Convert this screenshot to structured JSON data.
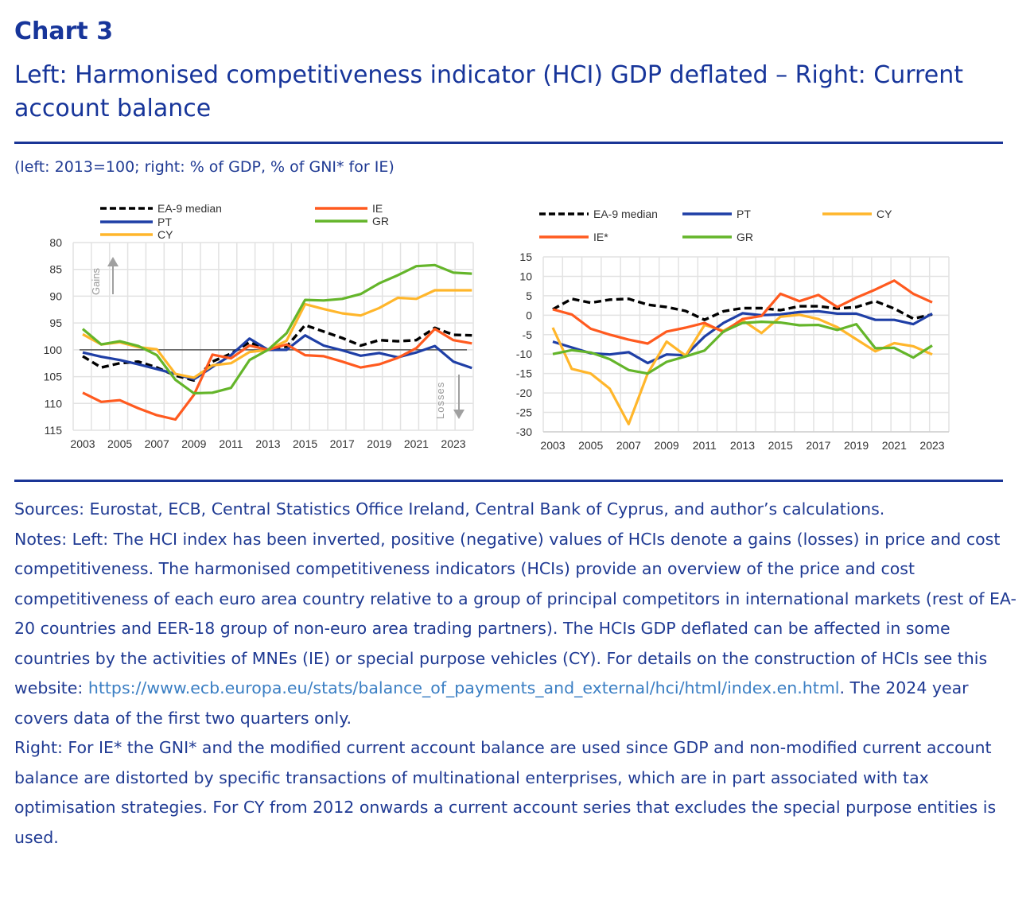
{
  "header": {
    "chart_label": "Chart 3",
    "title": "Left: Harmonised competitiveness indicator (HCI) GDP deflated – Right: Current account balance",
    "units": "(left: 2013=100; right: % of GDP, % of GNI* for IE)"
  },
  "colors": {
    "ea9": "#000000",
    "pt": "#1f3fa6",
    "cy": "#ffb62b",
    "ie": "#ff5a1f",
    "gr": "#64b52a",
    "brand": "#17359a",
    "link": "#3b7fc4"
  },
  "chart_data": [
    {
      "type": "line",
      "title": "Harmonised competitiveness indicator (HCI) GDP deflated",
      "ylabel": "2013=100",
      "yaxis_inverted": true,
      "ylim": [
        80,
        115
      ],
      "yticks": [
        80,
        85,
        90,
        95,
        100,
        105,
        110,
        115
      ],
      "xticks": [
        2003,
        2005,
        2007,
        2009,
        2011,
        2013,
        2015,
        2017,
        2019,
        2021,
        2023
      ],
      "x": [
        2003,
        2004,
        2005,
        2006,
        2007,
        2008,
        2009,
        2010,
        2011,
        2012,
        2013,
        2014,
        2015,
        2016,
        2017,
        2018,
        2019,
        2020,
        2021,
        2022,
        2023,
        2024
      ],
      "reference_line": 100,
      "annotations": [
        {
          "text": "Gains",
          "direction": "up"
        },
        {
          "text": "Losses",
          "direction": "down"
        }
      ],
      "grid": true,
      "legend_position": "top",
      "series": [
        {
          "name": "EA-9 median",
          "key": "ea9",
          "dashed": true,
          "values": [
            101.2,
            103.3,
            102.5,
            102.2,
            103.3,
            104.8,
            105.7,
            102.2,
            100.7,
            98.6,
            100.0,
            99.4,
            95.4,
            96.6,
            97.8,
            99.2,
            98.2,
            98.4,
            98.2,
            95.9,
            97.2,
            97.3
          ]
        },
        {
          "name": "PT",
          "key": "pt",
          "dashed": false,
          "values": [
            100.5,
            101.3,
            101.9,
            102.7,
            103.6,
            104.5,
            105.5,
            103.2,
            101.0,
            97.9,
            100.0,
            100.0,
            97.3,
            99.2,
            100.1,
            101.1,
            100.6,
            101.4,
            100.5,
            99.3,
            102.2,
            103.4
          ]
        },
        {
          "name": "CY",
          "key": "cy",
          "dashed": false,
          "values": [
            97.1,
            99.0,
            98.6,
            99.5,
            99.9,
            104.5,
            105.2,
            102.9,
            102.5,
            100.4,
            100.0,
            98.3,
            91.5,
            92.4,
            93.2,
            93.6,
            92.2,
            90.3,
            90.5,
            88.9,
            88.9,
            88.9
          ]
        },
        {
          "name": "IE",
          "key": "ie",
          "dashed": false,
          "values": [
            108.0,
            109.7,
            109.4,
            110.9,
            112.2,
            113.0,
            108.4,
            100.9,
            101.6,
            99.2,
            100.0,
            99.0,
            101.0,
            101.2,
            102.2,
            103.3,
            102.7,
            101.5,
            99.7,
            96.1,
            98.2,
            98.8
          ]
        },
        {
          "name": "GR",
          "key": "gr",
          "dashed": false,
          "values": [
            96.1,
            99.0,
            98.4,
            99.3,
            101.0,
            105.6,
            108.1,
            108.0,
            107.1,
            101.9,
            100.0,
            96.9,
            90.7,
            90.8,
            90.5,
            89.6,
            87.6,
            86.1,
            84.4,
            84.2,
            85.6,
            85.8
          ]
        }
      ]
    },
    {
      "type": "line",
      "title": "Current account balance",
      "ylabel": "% of GDP, % of GNI* for IE",
      "ylim": [
        -30,
        15
      ],
      "yticks": [
        15,
        10,
        5,
        0,
        -5,
        -10,
        -15,
        -20,
        -25,
        -30
      ],
      "xticks": [
        2003,
        2005,
        2007,
        2009,
        2011,
        2013,
        2015,
        2017,
        2019,
        2021,
        2023
      ],
      "x": [
        2003,
        2004,
        2005,
        2006,
        2007,
        2008,
        2009,
        2010,
        2011,
        2012,
        2013,
        2014,
        2015,
        2016,
        2017,
        2018,
        2019,
        2020,
        2021,
        2022,
        2023
      ],
      "grid": true,
      "legend_position": "top",
      "series": [
        {
          "name": "EA-9 median",
          "key": "ea9",
          "dashed": true,
          "values": [
            1.5,
            4.2,
            3.2,
            4.0,
            4.2,
            2.7,
            2.1,
            1.1,
            -1.2,
            1.0,
            1.8,
            1.8,
            1.3,
            2.3,
            2.3,
            1.7,
            2.1,
            3.6,
            1.7,
            -0.9,
            0.2
          ]
        },
        {
          "name": "PT",
          "key": "pt",
          "dashed": false,
          "values": [
            -6.8,
            -8.3,
            -9.8,
            -10.1,
            -9.5,
            -12.3,
            -10.1,
            -10.3,
            -5.5,
            -2.0,
            0.5,
            0.0,
            0.2,
            0.8,
            1.0,
            0.4,
            0.4,
            -1.2,
            -1.2,
            -2.3,
            0.4
          ]
        },
        {
          "name": "CY",
          "key": "cy",
          "dashed": false,
          "values": [
            -3.2,
            -13.8,
            -15.0,
            -18.9,
            -28.0,
            -15.0,
            -6.8,
            -10.4,
            -2.5,
            -4.0,
            -1.3,
            -4.6,
            -0.4,
            0.1,
            -1.0,
            -3.1,
            -6.2,
            -9.3,
            -7.2,
            -8.0,
            -10.1
          ]
        },
        {
          "name": "IE*",
          "key": "ie",
          "dashed": false,
          "values": [
            1.5,
            0.2,
            -3.5,
            -5.0,
            -6.3,
            -7.3,
            -4.2,
            -3.2,
            -2.0,
            -4.3,
            -1.0,
            -0.2,
            5.5,
            3.6,
            5.2,
            2.1,
            4.5,
            6.6,
            8.9,
            5.5,
            3.3
          ]
        },
        {
          "name": "GR",
          "key": "gr",
          "dashed": false,
          "values": [
            -10.0,
            -9.0,
            -9.6,
            -11.3,
            -14.1,
            -15.0,
            -12.0,
            -10.6,
            -9.1,
            -4.2,
            -2.0,
            -1.7,
            -1.9,
            -2.6,
            -2.5,
            -3.8,
            -2.3,
            -8.5,
            -8.4,
            -10.9,
            -7.8
          ]
        }
      ]
    }
  ],
  "notes": {
    "sources": "Sources: Eurostat, ECB, Central Statistics Office Ireland, Central Bank of Cyprus, and author’s calculations.",
    "left_intro": "Notes: Left: The HCI index has been inverted, positive (negative) values of HCIs denote a gains (losses) in price and cost competitiveness. The harmonised competitiveness indicators (HCIs) provide an overview of the price and cost competitiveness of each euro area country relative to a group of principal competitors in international markets (rest of EA-20 countries and EER-18 group of non-euro area trading partners). The HCIs GDP deflated can be affected in some countries by the activities of MNEs (IE) or special purpose vehicles (CY). For details on the construction of HCIs see this website:",
    "link": "https://www.ecb.europa.eu/stats/balance_of_payments_and_external/hci/html/index.en.html",
    "left_outro": ". The 2024 year covers data of the first two quarters only.",
    "right": "Right: For IE* the GNI* and the modified current account balance are used since GDP and non-modified current account balance are distorted by specific transactions of multinational enterprises, which are in part associated with tax optimisation strategies. For CY from 2012 onwards a current account series that excludes the special purpose entities is used."
  }
}
